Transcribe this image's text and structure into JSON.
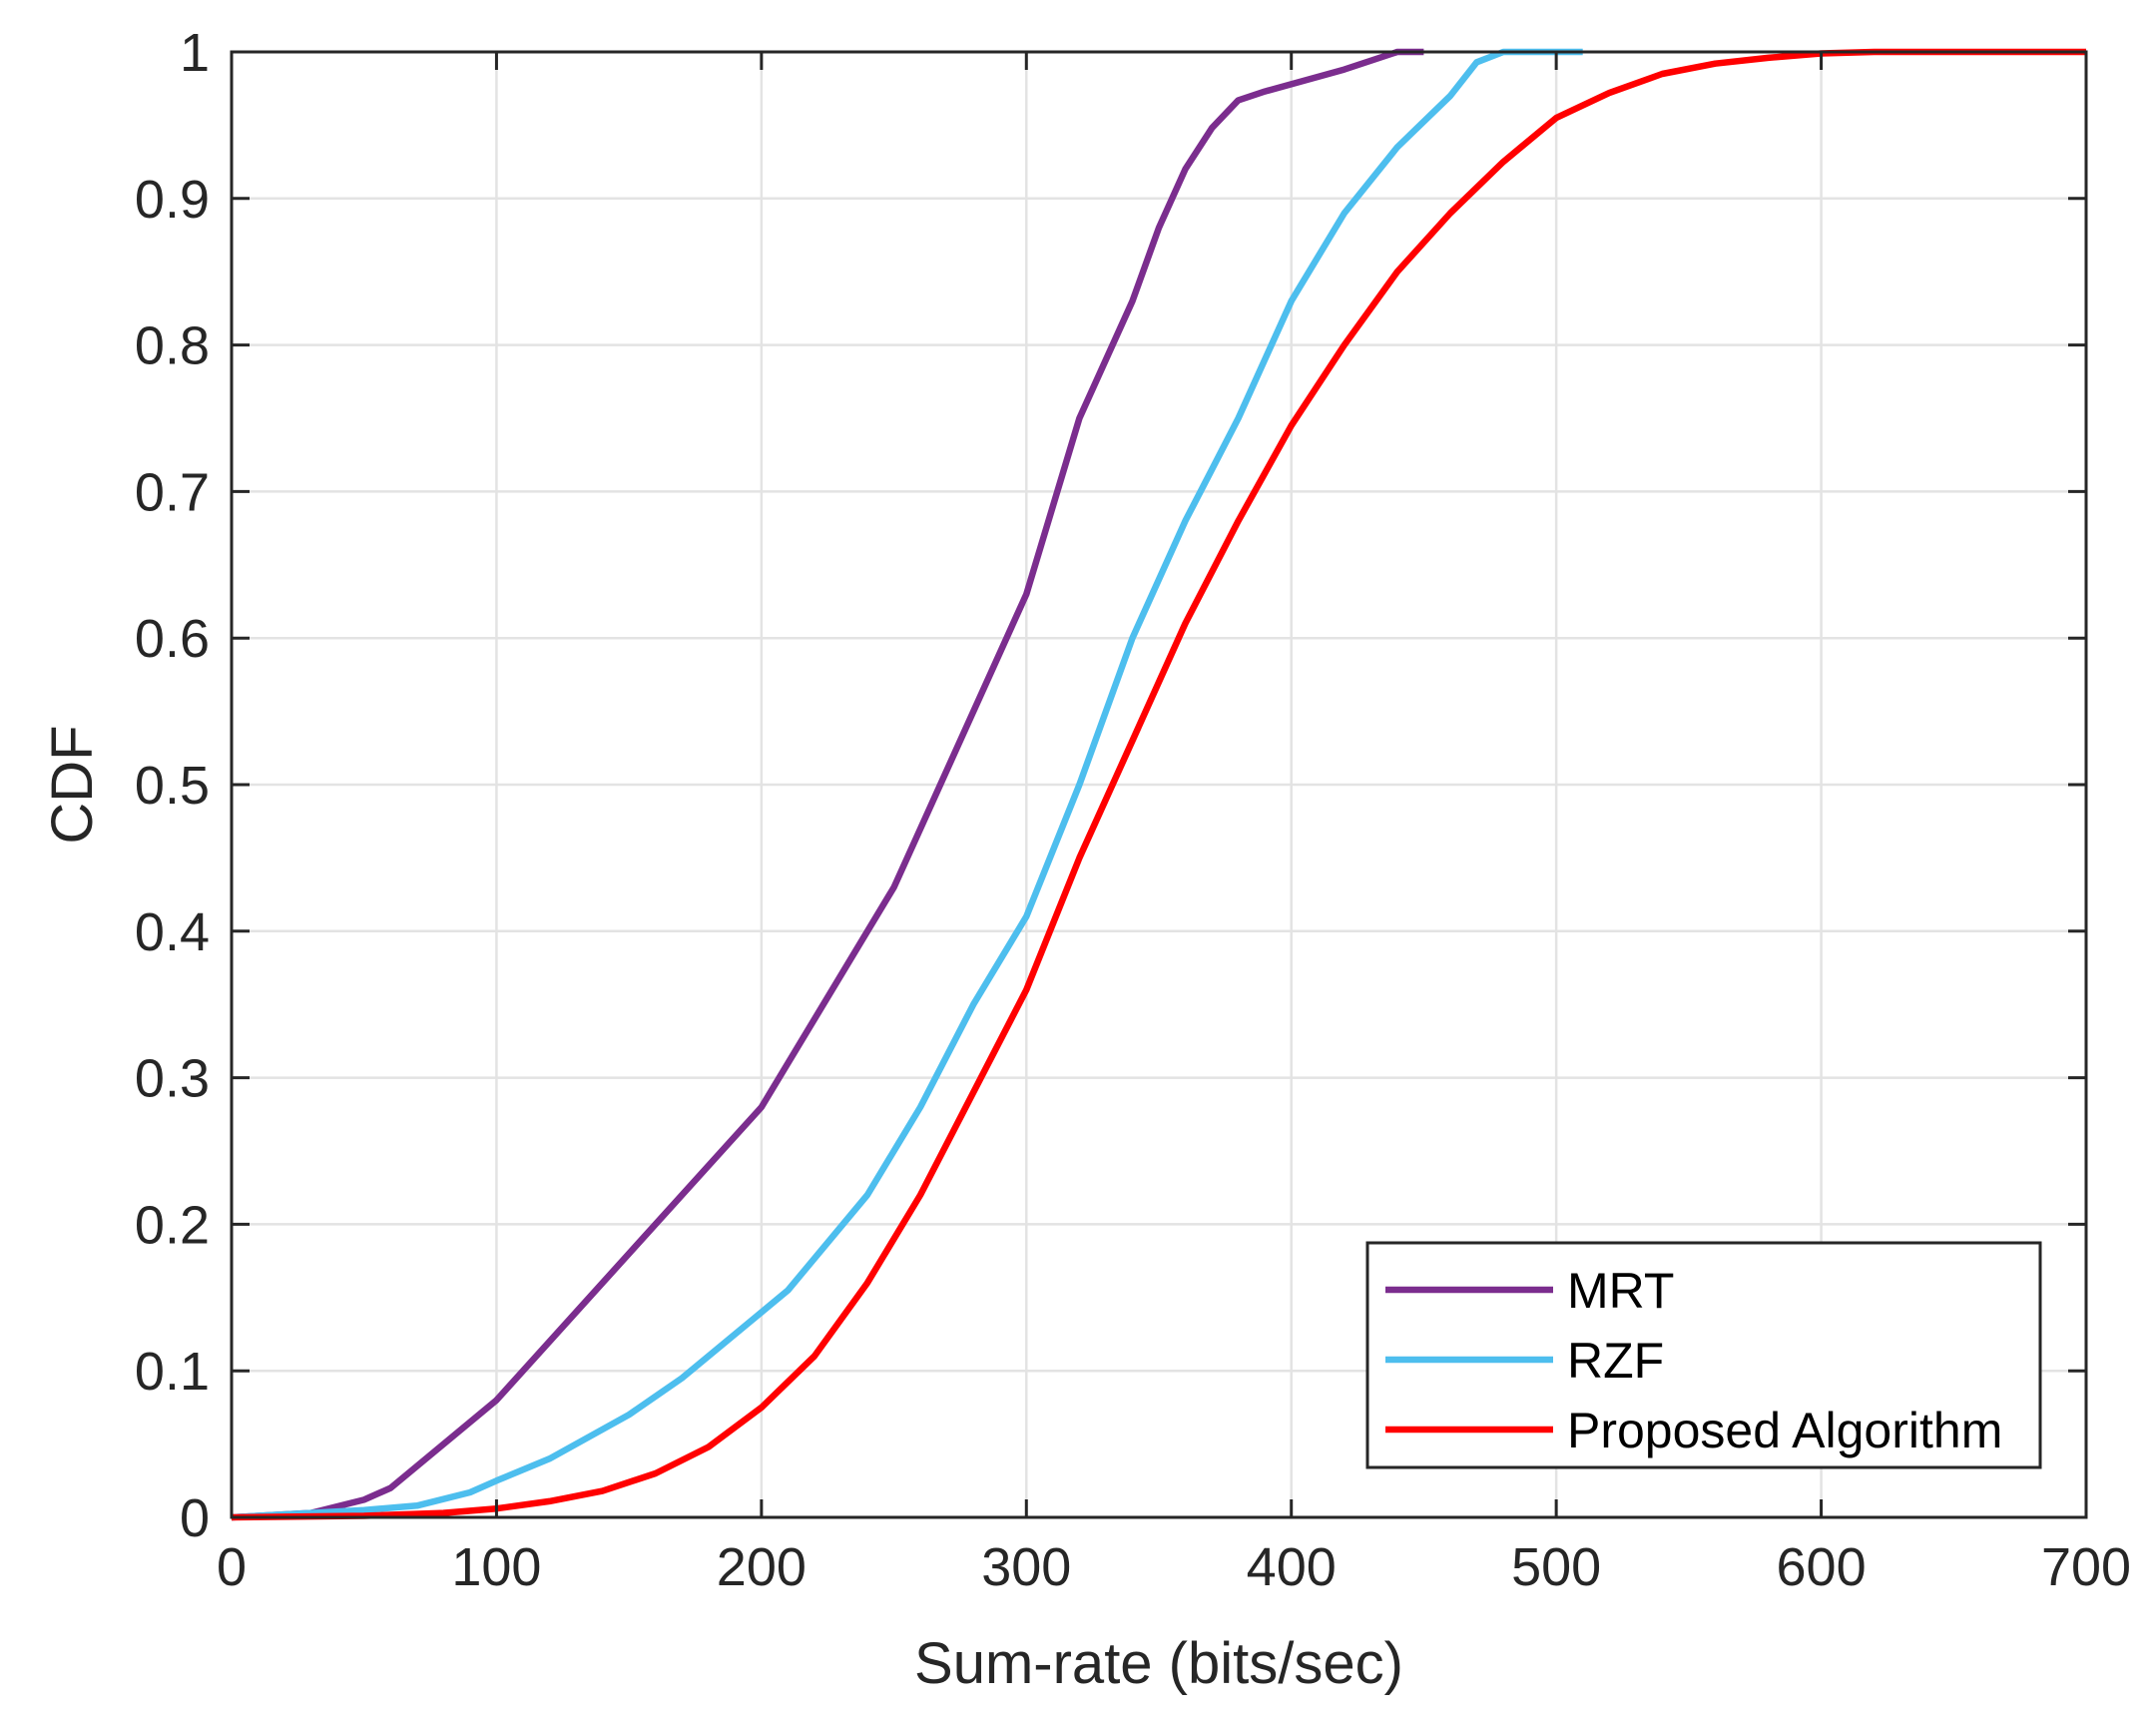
{
  "chart_data": {
    "type": "line",
    "xlabel": "Sum-rate (bits/sec)",
    "ylabel": "CDF",
    "xlim": [
      0,
      700
    ],
    "ylim": [
      0,
      1
    ],
    "xticks": [
      "0",
      "100",
      "200",
      "300",
      "400",
      "500",
      "600",
      "700"
    ],
    "yticks": [
      "0",
      "0.1",
      "0.2",
      "0.3",
      "0.4",
      "0.5",
      "0.6",
      "0.7",
      "0.8",
      "0.9",
      "1"
    ],
    "grid": true,
    "legend_position": "bottom-right",
    "series": [
      {
        "name": "MRT",
        "color": "#7B2D8E",
        "x": [
          0,
          30,
          50,
          60,
          100,
          150,
          200,
          250,
          300,
          320,
          340,
          350,
          360,
          370,
          380,
          390,
          420,
          440,
          450
        ],
        "y": [
          0,
          0.003,
          0.012,
          0.02,
          0.08,
          0.18,
          0.28,
          0.43,
          0.63,
          0.75,
          0.83,
          0.88,
          0.92,
          0.948,
          0.967,
          0.973,
          0.988,
          1.0,
          1.0
        ]
      },
      {
        "name": "RZF",
        "color": "#4DBEEE",
        "x": [
          0,
          50,
          70,
          90,
          100,
          120,
          150,
          170,
          200,
          210,
          240,
          260,
          280,
          300,
          320,
          340,
          360,
          370,
          380,
          400,
          420,
          440,
          460,
          470,
          480,
          510
        ],
        "y": [
          0,
          0.005,
          0.008,
          0.017,
          0.025,
          0.04,
          0.07,
          0.095,
          0.14,
          0.155,
          0.22,
          0.28,
          0.35,
          0.41,
          0.5,
          0.6,
          0.68,
          0.715,
          0.75,
          0.83,
          0.89,
          0.935,
          0.97,
          0.993,
          1.0,
          1.0
        ]
      },
      {
        "name": "Proposed Algorithm",
        "color": "#FF0000",
        "x": [
          0,
          50,
          80,
          100,
          120,
          140,
          160,
          180,
          200,
          220,
          240,
          260,
          280,
          300,
          320,
          340,
          360,
          380,
          400,
          420,
          440,
          460,
          480,
          500,
          520,
          540,
          560,
          580,
          600,
          620,
          700
        ],
        "y": [
          0,
          0.001,
          0.003,
          0.006,
          0.011,
          0.018,
          0.03,
          0.048,
          0.075,
          0.11,
          0.16,
          0.22,
          0.29,
          0.36,
          0.45,
          0.53,
          0.61,
          0.68,
          0.745,
          0.8,
          0.85,
          0.89,
          0.925,
          0.955,
          0.972,
          0.985,
          0.992,
          0.996,
          0.999,
          1.0,
          1.0
        ]
      }
    ]
  }
}
